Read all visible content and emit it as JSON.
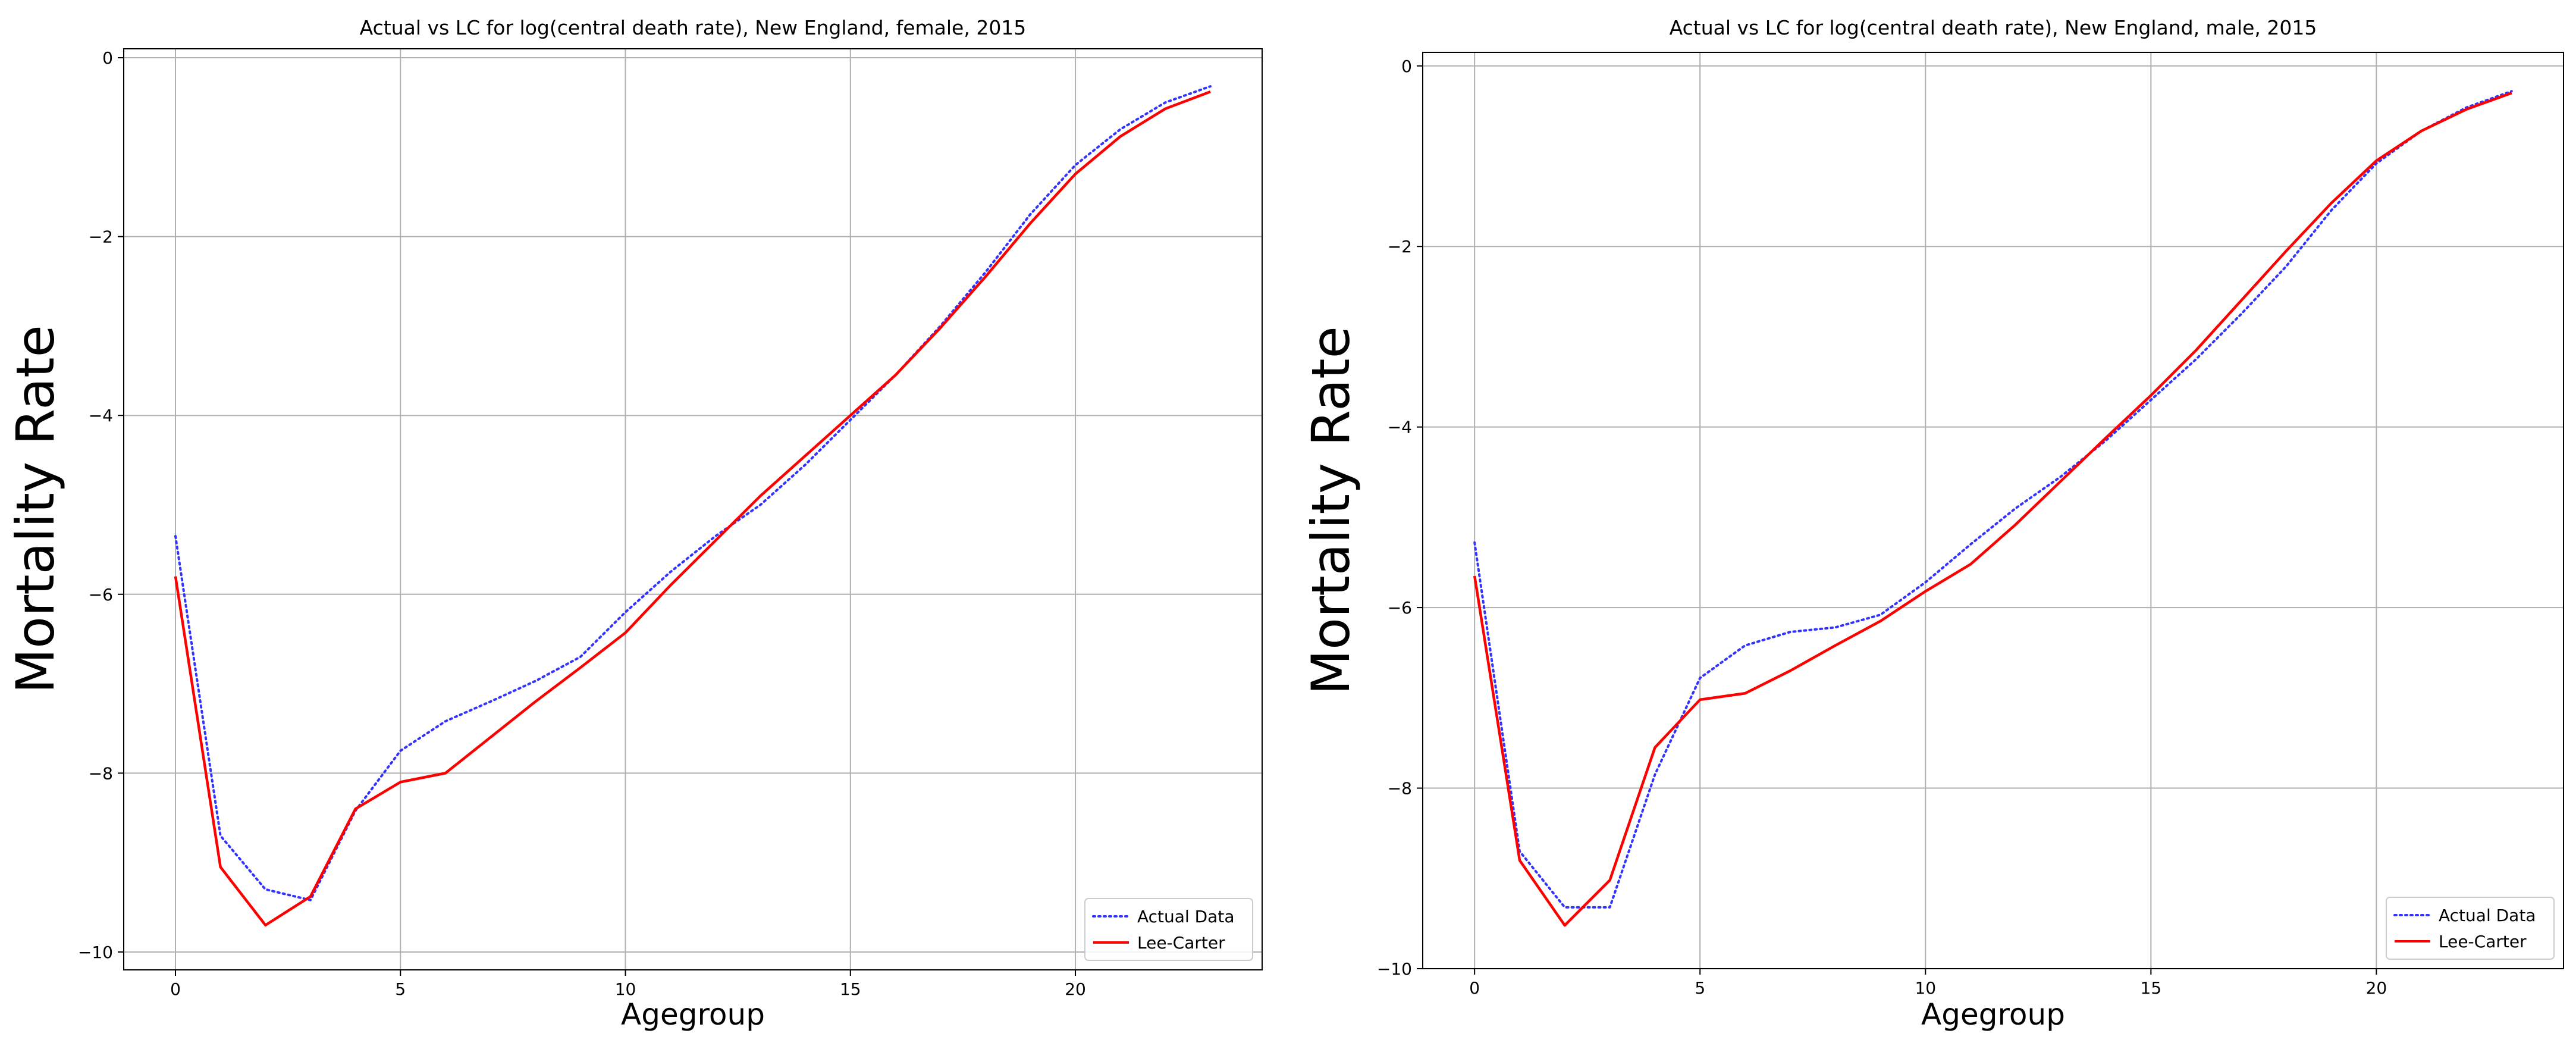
{
  "chart_data": [
    {
      "type": "line",
      "title": "Actual vs LC for log(central death rate), New England, female, 2015",
      "xlabel": "Agegroup",
      "ylabel": "Mortality Rate",
      "xlim": [
        -1.15,
        24.15
      ],
      "ylim": [
        -10.2,
        0.1
      ],
      "xticks": [
        0,
        5,
        10,
        15,
        20
      ],
      "yticks": [
        0,
        -2,
        -4,
        -6,
        -8,
        -10
      ],
      "grid": true,
      "legend_position": "lower-right",
      "x": [
        0,
        1,
        2,
        3,
        4,
        5,
        6,
        7,
        8,
        9,
        10,
        11,
        12,
        13,
        14,
        15,
        16,
        17,
        18,
        19,
        20,
        21,
        22,
        23
      ],
      "series": [
        {
          "name": "Actual Data",
          "color": "#3333ff",
          "style": "dotted",
          "values": [
            -5.35,
            -8.7,
            -9.3,
            -9.42,
            -8.42,
            -7.75,
            -7.42,
            -7.2,
            -6.97,
            -6.7,
            -6.2,
            -5.75,
            -5.35,
            -5.0,
            -4.55,
            -4.05,
            -3.55,
            -3.0,
            -2.4,
            -1.75,
            -1.2,
            -0.8,
            -0.5,
            -0.32
          ]
        },
        {
          "name": "Lee-Carter",
          "color": "#ff0000",
          "style": "solid",
          "values": [
            -5.8,
            -9.05,
            -9.7,
            -9.38,
            -8.4,
            -8.1,
            -8.0,
            -7.6,
            -7.2,
            -6.82,
            -6.43,
            -5.9,
            -5.4,
            -4.9,
            -4.45,
            -4.0,
            -3.55,
            -3.02,
            -2.45,
            -1.85,
            -1.3,
            -0.88,
            -0.57,
            -0.38
          ]
        }
      ]
    },
    {
      "type": "line",
      "title": "Actual vs LC for log(central death rate), New England, male, 2015",
      "xlabel": "Agegroup",
      "ylabel": "Mortality Rate",
      "xlim": [
        -1.15,
        24.15
      ],
      "ylim": [
        -10.0,
        0.15
      ],
      "xticks": [
        0,
        5,
        10,
        15,
        20
      ],
      "yticks": [
        0,
        -2,
        -4,
        -6,
        -8,
        -10
      ],
      "grid": true,
      "legend_position": "lower-right",
      "x": [
        0,
        1,
        2,
        3,
        4,
        5,
        6,
        7,
        8,
        9,
        10,
        11,
        12,
        13,
        14,
        15,
        16,
        17,
        18,
        19,
        20,
        21,
        22,
        23
      ],
      "series": [
        {
          "name": "Actual Data",
          "color": "#3333ff",
          "style": "dotted",
          "values": [
            -5.28,
            -8.7,
            -9.32,
            -9.32,
            -7.85,
            -6.78,
            -6.42,
            -6.27,
            -6.22,
            -6.08,
            -5.72,
            -5.3,
            -4.9,
            -4.55,
            -4.15,
            -3.7,
            -3.25,
            -2.75,
            -2.22,
            -1.6,
            -1.08,
            -0.72,
            -0.46,
            -0.28
          ]
        },
        {
          "name": "Lee-Carter",
          "color": "#ff0000",
          "style": "solid",
          "values": [
            -5.65,
            -8.8,
            -9.52,
            -9.02,
            -7.55,
            -7.02,
            -6.95,
            -6.7,
            -6.42,
            -6.15,
            -5.82,
            -5.52,
            -5.08,
            -4.6,
            -4.12,
            -3.65,
            -3.15,
            -2.6,
            -2.05,
            -1.52,
            -1.05,
            -0.72,
            -0.48,
            -0.3
          ]
        }
      ]
    }
  ]
}
